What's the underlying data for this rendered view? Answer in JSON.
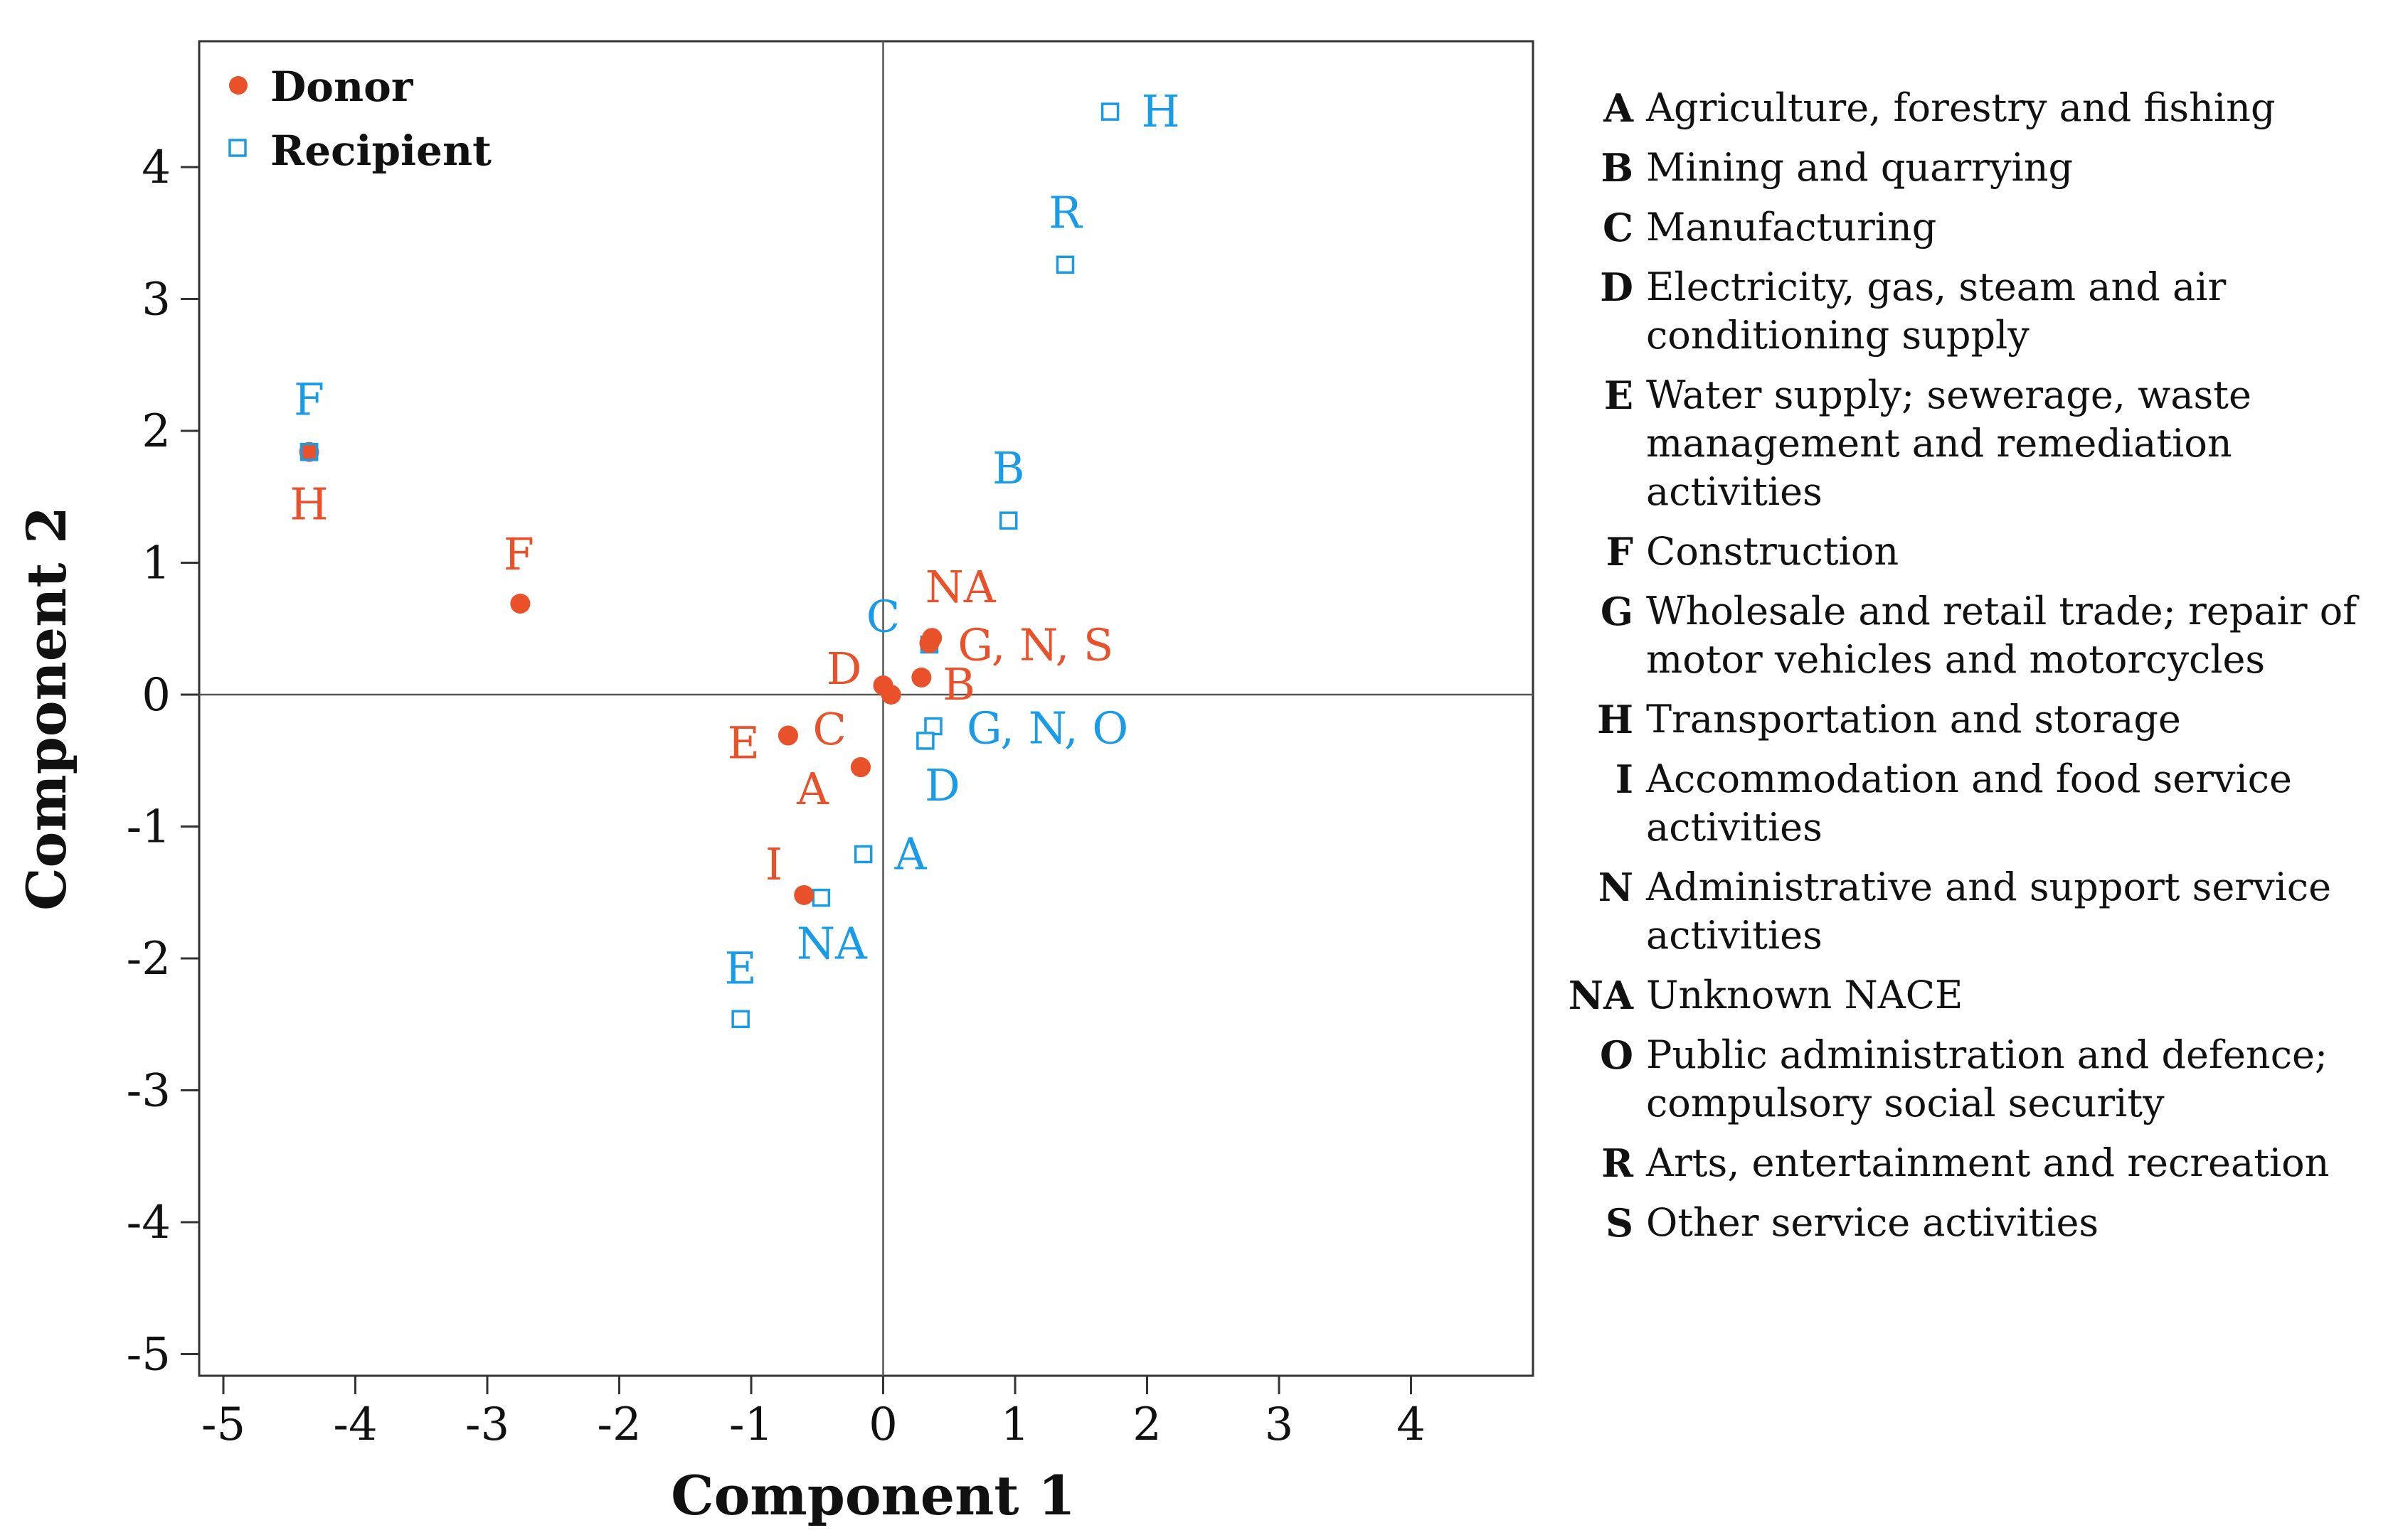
{
  "chart_data": {
    "type": "scatter",
    "xlabel": "Component 1",
    "ylabel": "Component 2",
    "xlim": [
      -5,
      5
    ],
    "ylim": [
      -5.2,
      4.9
    ],
    "x_ticks": [
      "-5",
      "-4",
      "-3",
      "-2",
      "-1",
      "0",
      "1",
      "2",
      "3",
      "4"
    ],
    "y_ticks": [
      "-5",
      "-4",
      "-3",
      "-2",
      "-1",
      "0",
      "1",
      "2",
      "3",
      "4"
    ],
    "reference_lines": {
      "x": 0,
      "y": 0
    },
    "grid": false,
    "legend_position": "top-left",
    "colors": {
      "donor": "#e8512a",
      "recipient": "#1a9be8",
      "axis": "#333333"
    },
    "series": [
      {
        "name": "Donor",
        "marker": "filled-circle",
        "points": [
          {
            "label": "H",
            "x": -4.35,
            "y": 1.84
          },
          {
            "label": "F",
            "x": -2.75,
            "y": 0.69
          },
          {
            "label": "NA",
            "x": 0.37,
            "y": 0.43
          },
          {
            "label": "G, N, S",
            "x": 0.35,
            "y": 0.39
          },
          {
            "label": "D",
            "x": 0.0,
            "y": 0.07
          },
          {
            "label": "B",
            "x": 0.29,
            "y": 0.13
          },
          {
            "label": "",
            "x": 0.06,
            "y": 0.0
          },
          {
            "label": "E",
            "x": -0.72,
            "y": -0.31
          },
          {
            "label": "C",
            "x": -0.17,
            "y": -0.55
          },
          {
            "label": "A",
            "x": -0.17,
            "y": -0.55
          },
          {
            "label": "I",
            "x": -0.6,
            "y": -1.52
          }
        ]
      },
      {
        "name": "Recipient",
        "marker": "open-square",
        "points": [
          {
            "label": "H",
            "x": 1.72,
            "y": 4.42
          },
          {
            "label": "R",
            "x": 1.38,
            "y": 3.26
          },
          {
            "label": "F",
            "x": -4.35,
            "y": 1.84
          },
          {
            "label": "B",
            "x": 0.95,
            "y": 1.32
          },
          {
            "label": "C",
            "x": 0.35,
            "y": 0.38
          },
          {
            "label": "G, N, O",
            "x": 0.38,
            "y": -0.24
          },
          {
            "label": "D",
            "x": 0.32,
            "y": -0.35
          },
          {
            "label": "A",
            "x": -0.15,
            "y": -1.21
          },
          {
            "label": "NA",
            "x": -0.47,
            "y": -1.54
          },
          {
            "label": "E",
            "x": -1.08,
            "y": -2.46
          }
        ]
      }
    ],
    "point_label_order": {
      "Donor": [
        "H",
        "F",
        "NA",
        "G, N, S",
        "D",
        "B",
        "",
        "E",
        "C",
        "A",
        "I"
      ],
      "Recipient": [
        "H",
        "R",
        "F",
        "B",
        "C",
        "G, N, O",
        "D",
        "A",
        "NA",
        "E"
      ]
    }
  },
  "nace_legend": [
    {
      "code": "A",
      "desc": "Agriculture, forestry and fishing"
    },
    {
      "code": "B",
      "desc": "Mining and quarrying"
    },
    {
      "code": "C",
      "desc": "Manufacturing"
    },
    {
      "code": "D",
      "desc": "Electricity, gas, steam and air conditioning supply"
    },
    {
      "code": "E",
      "desc": "Water supply; sewerage, waste management and remediation activities"
    },
    {
      "code": "F",
      "desc": "Construction"
    },
    {
      "code": "G",
      "desc": "Wholesale and retail trade; repair of motor vehicles and motorcycles"
    },
    {
      "code": "H",
      "desc": "Transportation and storage"
    },
    {
      "code": "I",
      "desc": "Accommodation and food service activities"
    },
    {
      "code": "N",
      "desc": "Administrative and support service activities"
    },
    {
      "code": "NA",
      "desc": "Unknown NACE"
    },
    {
      "code": "O",
      "desc": "Public administration and defence; compulsory social security"
    },
    {
      "code": "R",
      "desc": "Arts, entertainment and recreation"
    },
    {
      "code": "S",
      "desc": "Other service activities"
    }
  ]
}
